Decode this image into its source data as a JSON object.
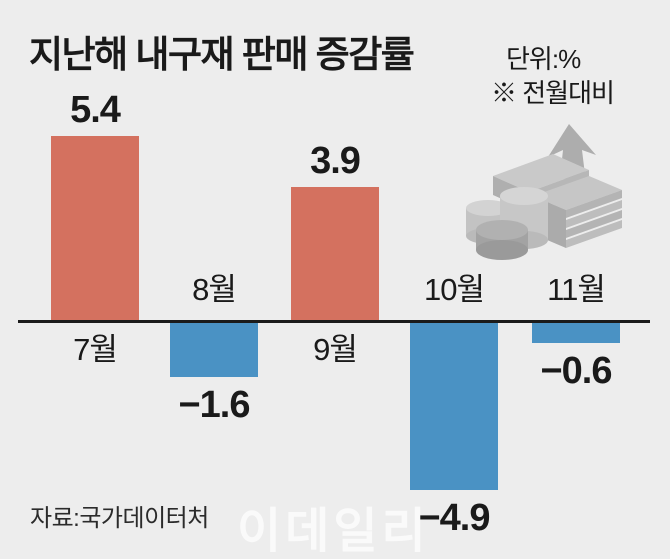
{
  "header": {
    "title": "지난해 내구재 판매 증감률",
    "unit": "단위:%",
    "note": "※ 전월대비"
  },
  "footer": {
    "source": "자료:국가데이터처",
    "watermark": "이데일리"
  },
  "colors": {
    "background": "#EDEDED",
    "positive_bar": "#D4715F",
    "negative_bar": "#4A92C4",
    "axis": "#1B1B1B",
    "icon_gray": "#BDBDBD",
    "watermark": "#FAFAFA"
  },
  "chart_data": {
    "type": "bar",
    "title": "지난해 내구재 판매 증감률",
    "subtitle": "※ 전월대비",
    "unit": "단위:%",
    "categories": [
      "7월",
      "8월",
      "9월",
      "10월",
      "11월"
    ],
    "values": [
      5.4,
      -1.6,
      3.9,
      -4.9,
      -0.6
    ],
    "value_labels": [
      "5.4",
      "−1.6",
      "3.9",
      "−4.9",
      "−0.6"
    ],
    "xlabel": "",
    "ylabel": "%",
    "ylim": [
      -5.5,
      6.0
    ],
    "grid": false,
    "legend": "none",
    "baseline": 0,
    "positive_color": "#D4715F",
    "negative_color": "#4A92C4"
  }
}
